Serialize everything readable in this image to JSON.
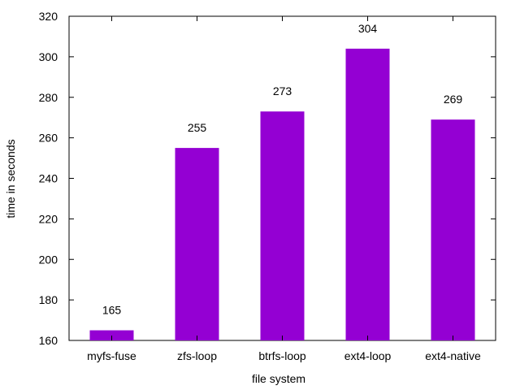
{
  "chart_data": {
    "type": "bar",
    "title": "",
    "xlabel": "file system",
    "ylabel": "time in seconds",
    "categories": [
      "myfs-fuse",
      "zfs-loop",
      "btrfs-loop",
      "ext4-loop",
      "ext4-native"
    ],
    "values": [
      165,
      255,
      273,
      304,
      269
    ],
    "data_labels": [
      "165",
      "255",
      "273",
      "304",
      "269"
    ],
    "ylim": [
      160,
      320
    ],
    "yticks": [
      160,
      180,
      200,
      220,
      240,
      260,
      280,
      300,
      320
    ],
    "grid": false,
    "legend": "none",
    "bar_color": "#9400d3"
  }
}
